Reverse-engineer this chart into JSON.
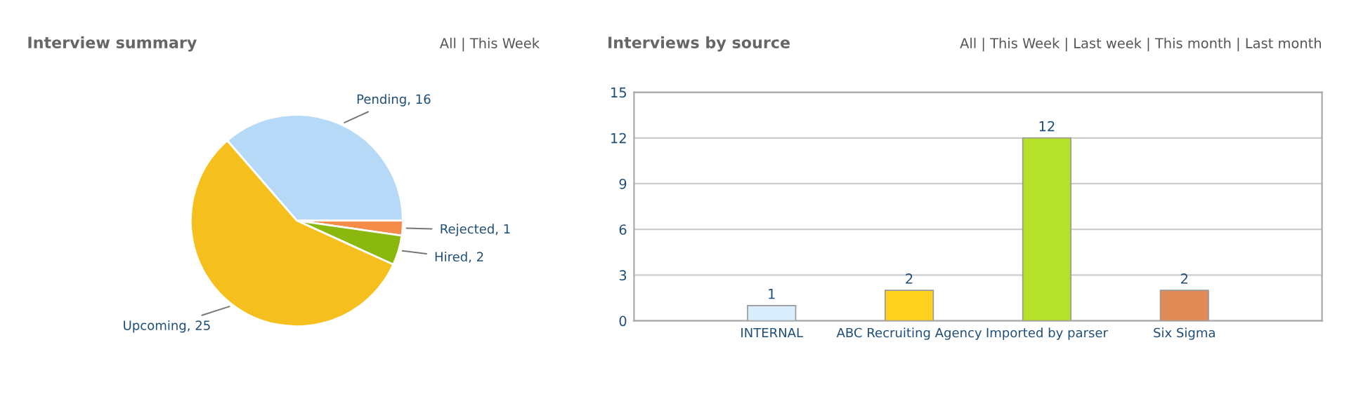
{
  "chart_data": [
    {
      "type": "pie",
      "title": "Interview summary",
      "annotations": [
        "All | This Week"
      ],
      "categories": [
        "Pending, 16",
        "Rejected, 1",
        "Hired, 2",
        "Upcoming, 25"
      ],
      "values": [
        16,
        1,
        2,
        25
      ],
      "colors": [
        "#b5d9f7",
        "#f58c4a",
        "#8bb80e",
        "#f5c01e"
      ]
    },
    {
      "type": "bar",
      "title": "Interviews by source",
      "annotations": [
        "All | This Week | Last week | This month | Last month"
      ],
      "categories": [
        "INTERNAL",
        "ABC Recruiting Agency",
        "Imported by parser",
        "Six Sigma"
      ],
      "values": [
        1,
        2,
        12,
        2
      ],
      "colors": [
        "#d8eefc",
        "#ffd21f",
        "#b6e12a",
        "#e08a55"
      ],
      "ylim": [
        0,
        15
      ],
      "yticks": [
        0,
        3,
        6,
        9,
        12,
        15
      ],
      "grid": "y",
      "data_labels": true
    }
  ]
}
